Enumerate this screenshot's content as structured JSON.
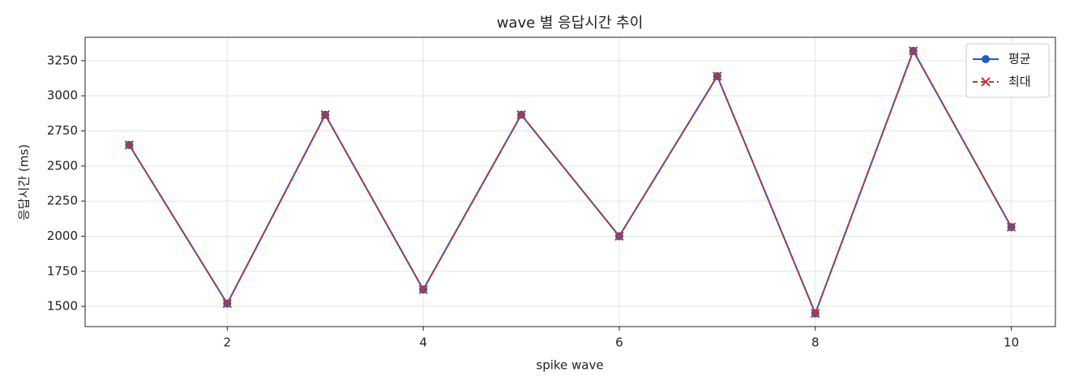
{
  "chart_data": {
    "type": "line",
    "title": "wave 별 응답시간 추이",
    "x_label": "spike wave",
    "y_label": "응답시간 (ms)",
    "x": [
      1,
      2,
      3,
      4,
      5,
      6,
      7,
      8,
      9,
      10
    ],
    "series": [
      {
        "name": "평균",
        "color": "#1f5fbf",
        "marker": "o",
        "linestyle": "solid",
        "values": [
          2650,
          1520,
          2865,
          1620,
          2865,
          2000,
          3140,
          1450,
          3320,
          2065
        ]
      },
      {
        "name": "최대",
        "color": "#c83232",
        "marker": "x",
        "linestyle": "dashed",
        "values": [
          2650,
          1520,
          2865,
          1620,
          2865,
          2000,
          3140,
          1450,
          3320,
          2065
        ]
      }
    ],
    "xlim": [
      0.55,
      10.45
    ],
    "ylim": [
      1356,
      3417
    ],
    "xticks": [
      2,
      4,
      6,
      8,
      10
    ],
    "yticks": [
      1500,
      1750,
      2000,
      2250,
      2500,
      2750,
      3000,
      3250
    ],
    "grid": true,
    "legend": "upper right"
  }
}
